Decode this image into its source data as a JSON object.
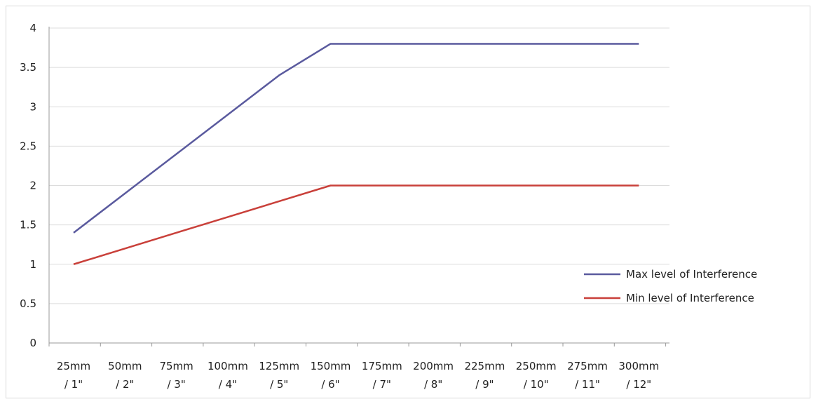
{
  "chart_data": {
    "type": "line",
    "title": "",
    "xlabel": "",
    "ylabel": "",
    "ylim": [
      0,
      4
    ],
    "yticks": [
      "0",
      "0.5",
      "1",
      "1.5",
      "2",
      "2.5",
      "3",
      "3.5",
      "4"
    ],
    "categories": [
      [
        "25mm",
        "/ 1\""
      ],
      [
        "50mm",
        "/ 2\""
      ],
      [
        "75mm",
        "/ 3\""
      ],
      [
        "100mm",
        "/ 4\""
      ],
      [
        "125mm",
        "/ 5\""
      ],
      [
        "150mm",
        "/ 6\""
      ],
      [
        "175mm",
        "/ 7\""
      ],
      [
        "200mm",
        "/ 8\""
      ],
      [
        "225mm",
        "/ 9\""
      ],
      [
        "250mm",
        "/ 10\""
      ],
      [
        "275mm",
        "/ 11\""
      ],
      [
        "300mm",
        "/ 12\""
      ]
    ],
    "series": [
      {
        "name": "Max level of Interference",
        "color": "#5a5a9e",
        "values": [
          1.4,
          1.9,
          2.4,
          2.9,
          3.4,
          3.8,
          3.8,
          3.8,
          3.8,
          3.8,
          3.8,
          3.8
        ]
      },
      {
        "name": "Min level of Interference",
        "color": "#c9403a",
        "values": [
          1.0,
          1.2,
          1.4,
          1.6,
          1.8,
          2.0,
          2.0,
          2.0,
          2.0,
          2.0,
          2.0,
          2.0
        ]
      }
    ],
    "grid": true,
    "legend_position": "right"
  }
}
